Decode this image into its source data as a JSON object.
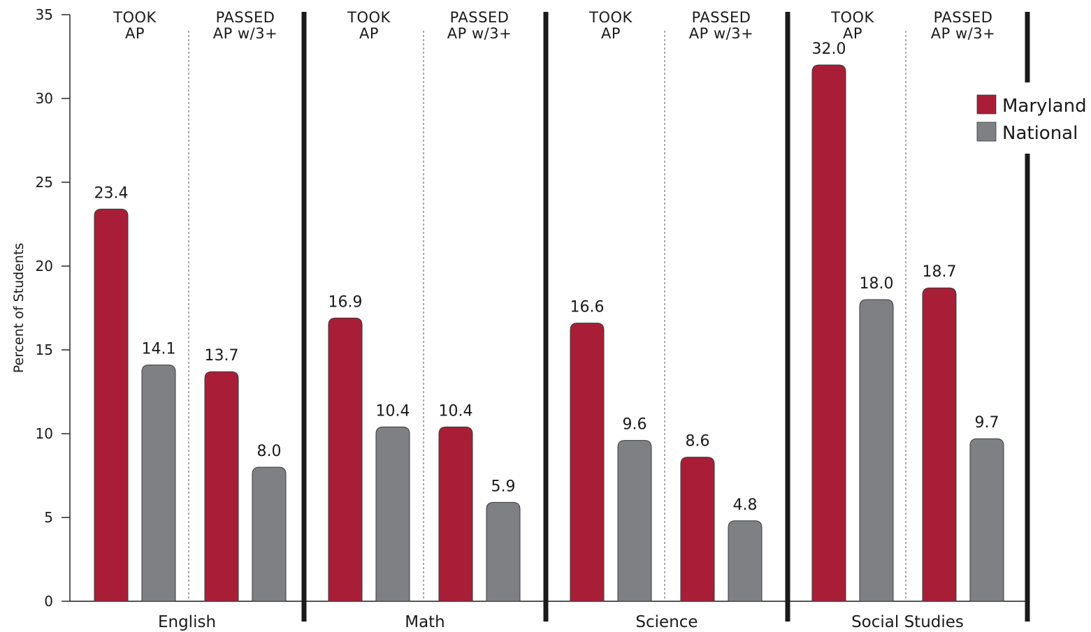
{
  "chart_data": {
    "type": "bar",
    "title": "",
    "xlabel": "",
    "ylabel": "Percent of Students",
    "ylim": [
      0,
      35
    ],
    "yticks": [
      0,
      5,
      10,
      15,
      20,
      25,
      30,
      35
    ],
    "grid": false,
    "legend": {
      "position": "right",
      "entries": [
        "Maryland",
        "National"
      ]
    },
    "colors": {
      "Maryland": "#a91e37",
      "National": "#7f8084",
      "separator": "#1a1a1a"
    },
    "subgroup_labels": [
      [
        "TOOK",
        "AP"
      ],
      [
        "PASSED",
        "AP w/3+"
      ]
    ],
    "groups": [
      {
        "name": "English",
        "took_ap": {
          "Maryland": 23.4,
          "National": 14.1
        },
        "passed_ap": {
          "Maryland": 13.7,
          "National": 8.0
        }
      },
      {
        "name": "Math",
        "took_ap": {
          "Maryland": 16.9,
          "National": 10.4
        },
        "passed_ap": {
          "Maryland": 10.4,
          "National": 5.9
        }
      },
      {
        "name": "Science",
        "took_ap": {
          "Maryland": 16.6,
          "National": 9.6
        },
        "passed_ap": {
          "Maryland": 8.6,
          "National": 4.8
        }
      },
      {
        "name": "Social Studies",
        "took_ap": {
          "Maryland": 32.0,
          "National": 18.0
        },
        "passed_ap": {
          "Maryland": 18.7,
          "National": 9.7
        }
      }
    ]
  }
}
